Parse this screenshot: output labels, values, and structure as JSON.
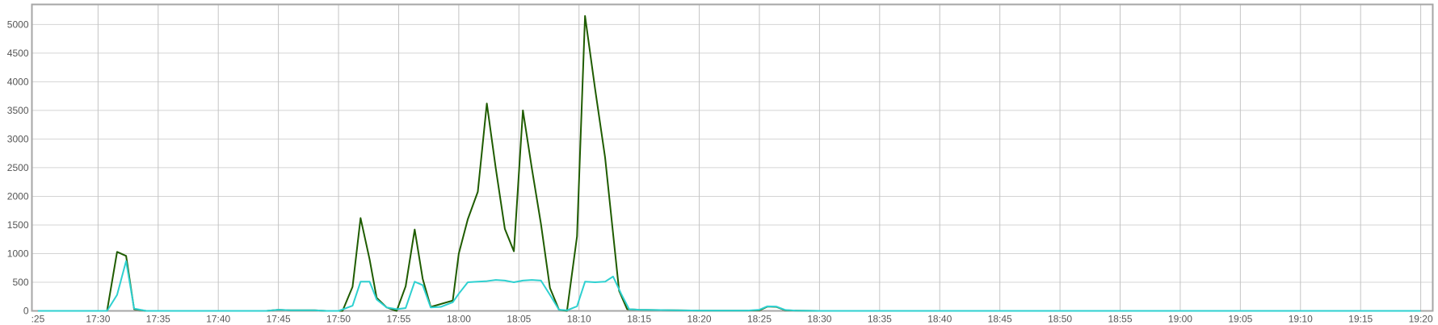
{
  "chart_data": {
    "type": "line",
    "title": "",
    "xlabel": "",
    "ylabel": "",
    "grid": true,
    "legend": "none",
    "xlim": [
      "17:24:30",
      "19:21:00"
    ],
    "ylim": [
      0,
      5350
    ],
    "x_ticks": [
      ":25",
      "17:30",
      "17:35",
      "17:40",
      "17:45",
      "17:50",
      "17:55",
      "18:00",
      "18:05",
      "18:10",
      "18:15",
      "18:20",
      "18:25",
      "18:30",
      "18:35",
      "18:40",
      "18:45",
      "18:50",
      "18:55",
      "19:00",
      "19:05",
      "19:10",
      "19:15",
      "19:20"
    ],
    "y_ticks": [
      0,
      500,
      1000,
      1500,
      2000,
      2500,
      3000,
      3500,
      4000,
      4500,
      5000
    ],
    "series": [
      {
        "color": "#1f5c00",
        "points": [
          [
            "17:25",
            0
          ],
          [
            "17:26",
            0
          ],
          [
            "17:27",
            0
          ],
          [
            "17:28",
            0
          ],
          [
            "17:29",
            0
          ],
          [
            "17:30",
            0
          ],
          [
            "17:30:45",
            0
          ],
          [
            "17:31:35",
            1030
          ],
          [
            "17:32:20",
            960
          ],
          [
            "17:33",
            30
          ],
          [
            "17:34",
            0
          ],
          [
            "17:35",
            0
          ],
          [
            "17:40",
            0
          ],
          [
            "17:44",
            0
          ],
          [
            "17:45",
            20
          ],
          [
            "17:46",
            10
          ],
          [
            "17:48",
            10
          ],
          [
            "17:49",
            0
          ],
          [
            "17:50",
            0
          ],
          [
            "17:50:20",
            0
          ],
          [
            "17:51:10",
            420
          ],
          [
            "17:51:50",
            1620
          ],
          [
            "17:52:35",
            900
          ],
          [
            "17:53:10",
            230
          ],
          [
            "17:54",
            60
          ],
          [
            "17:54:50",
            0
          ],
          [
            "17:55:35",
            430
          ],
          [
            "17:56:20",
            1420
          ],
          [
            "17:57",
            560
          ],
          [
            "17:57:40",
            70
          ],
          [
            "17:58:30",
            120
          ],
          [
            "17:59:30",
            180
          ],
          [
            "18:00",
            1000
          ],
          [
            "18:00:45",
            1600
          ],
          [
            "18:01:35",
            2080
          ],
          [
            "18:02:20",
            3620
          ],
          [
            "18:03:05",
            2480
          ],
          [
            "18:03:50",
            1430
          ],
          [
            "18:04:35",
            1040
          ],
          [
            "18:05:20",
            3500
          ],
          [
            "18:06:05",
            2480
          ],
          [
            "18:06:50",
            1520
          ],
          [
            "18:07:35",
            400
          ],
          [
            "18:08:20",
            20
          ],
          [
            "18:09",
            0
          ],
          [
            "18:09:50",
            1300
          ],
          [
            "18:10:30",
            5150
          ],
          [
            "18:11:20",
            3880
          ],
          [
            "18:12:10",
            2680
          ],
          [
            "18:13:20",
            350
          ],
          [
            "18:14",
            30
          ],
          [
            "18:15",
            20
          ],
          [
            "18:18",
            10
          ],
          [
            "18:20",
            5
          ],
          [
            "18:24",
            5
          ],
          [
            "18:25",
            10
          ],
          [
            "18:25:40",
            75
          ],
          [
            "18:26:25",
            70
          ],
          [
            "18:27:10",
            10
          ],
          [
            "18:28",
            5
          ],
          [
            "18:30",
            0
          ],
          [
            "19:20",
            0
          ]
        ]
      },
      {
        "color": "#2ed0d0",
        "points": [
          [
            "17:25",
            0
          ],
          [
            "17:26",
            0
          ],
          [
            "17:27",
            0
          ],
          [
            "17:28",
            0
          ],
          [
            "17:29",
            0
          ],
          [
            "17:30",
            0
          ],
          [
            "17:30:45",
            0
          ],
          [
            "17:31:35",
            280
          ],
          [
            "17:32:20",
            870
          ],
          [
            "17:33",
            40
          ],
          [
            "17:34",
            0
          ],
          [
            "17:35",
            0
          ],
          [
            "17:40",
            0
          ],
          [
            "17:44",
            0
          ],
          [
            "17:45",
            20
          ],
          [
            "17:46",
            10
          ],
          [
            "17:48",
            10
          ],
          [
            "17:49",
            0
          ],
          [
            "17:50",
            0
          ],
          [
            "17:51:10",
            90
          ],
          [
            "17:51:50",
            510
          ],
          [
            "17:52:35",
            510
          ],
          [
            "17:53:10",
            200
          ],
          [
            "17:54",
            60
          ],
          [
            "17:54:50",
            30
          ],
          [
            "17:55:35",
            50
          ],
          [
            "17:56:20",
            510
          ],
          [
            "17:57",
            450
          ],
          [
            "17:57:40",
            60
          ],
          [
            "17:58:30",
            70
          ],
          [
            "17:59:30",
            150
          ],
          [
            "18:00",
            300
          ],
          [
            "18:00:45",
            500
          ],
          [
            "18:01:35",
            510
          ],
          [
            "18:02:20",
            520
          ],
          [
            "18:03:05",
            540
          ],
          [
            "18:03:50",
            530
          ],
          [
            "18:04:35",
            500
          ],
          [
            "18:05:20",
            530
          ],
          [
            "18:06:05",
            540
          ],
          [
            "18:06:50",
            530
          ],
          [
            "18:07:35",
            280
          ],
          [
            "18:08:20",
            20
          ],
          [
            "18:09",
            10
          ],
          [
            "18:09:50",
            80
          ],
          [
            "18:10:30",
            510
          ],
          [
            "18:11:20",
            500
          ],
          [
            "18:12:10",
            510
          ],
          [
            "18:12:50",
            600
          ],
          [
            "18:13:30",
            300
          ],
          [
            "18:14:10",
            30
          ],
          [
            "18:15",
            20
          ],
          [
            "18:18",
            10
          ],
          [
            "18:20",
            5
          ],
          [
            "18:24",
            5
          ],
          [
            "18:25",
            20
          ],
          [
            "18:25:40",
            80
          ],
          [
            "18:26:25",
            75
          ],
          [
            "18:27:10",
            15
          ],
          [
            "18:28",
            5
          ],
          [
            "18:30",
            0
          ],
          [
            "19:20",
            0
          ]
        ]
      }
    ]
  }
}
